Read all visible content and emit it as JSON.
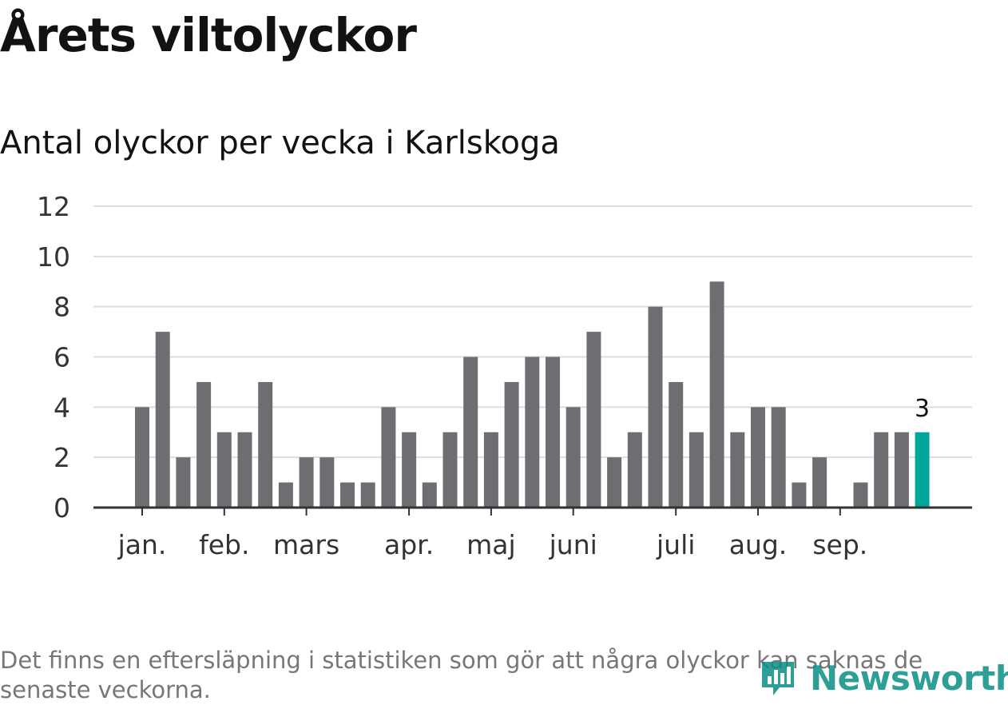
{
  "title": "Årets viltolyckor",
  "subtitle": "Antal olyckor per vecka i Karlskoga",
  "footnote": "Det finns en eftersläpning i statistiken som gör att några olyckor kan saknas de senaste veckorna.",
  "logo": {
    "text": "Newsworthy",
    "icon": "newsworthy-logo-icon"
  },
  "colors": {
    "bar": "#6e6d72",
    "highlight": "#00a69b",
    "grid": "#dddddd",
    "axis": "#333333"
  },
  "chart_data": {
    "type": "bar",
    "title": "Årets viltolyckor",
    "subtitle": "Antal olyckor per vecka i Karlskoga",
    "xlabel": "",
    "ylabel": "",
    "ylim": [
      0,
      12
    ],
    "yticks": [
      "0",
      "2",
      "4",
      "6",
      "8",
      "10",
      "12"
    ],
    "grid": true,
    "weeks": [
      1,
      2,
      3,
      4,
      5,
      6,
      7,
      8,
      9,
      10,
      11,
      12,
      13,
      14,
      15,
      16,
      17,
      18,
      19,
      20,
      21,
      22,
      23,
      24,
      25,
      26,
      27,
      28,
      29,
      30,
      31,
      32,
      33,
      34,
      35,
      36,
      37,
      38,
      39
    ],
    "values": [
      4,
      7,
      2,
      5,
      3,
      3,
      5,
      1,
      2,
      2,
      1,
      1,
      4,
      3,
      1,
      3,
      6,
      3,
      5,
      6,
      6,
      4,
      7,
      2,
      3,
      8,
      5,
      3,
      9,
      3,
      4,
      4,
      1,
      2,
      0,
      1,
      3,
      3,
      3
    ],
    "highlight_index": 38,
    "highlight_label": "3",
    "month_labels": [
      {
        "label": "jan.",
        "week": 1
      },
      {
        "label": "feb.",
        "week": 5
      },
      {
        "label": "mars",
        "week": 9
      },
      {
        "label": "apr.",
        "week": 14
      },
      {
        "label": "maj",
        "week": 18
      },
      {
        "label": "juni",
        "week": 22
      },
      {
        "label": "juli",
        "week": 27
      },
      {
        "label": "aug.",
        "week": 31
      },
      {
        "label": "sep.",
        "week": 35
      }
    ]
  }
}
